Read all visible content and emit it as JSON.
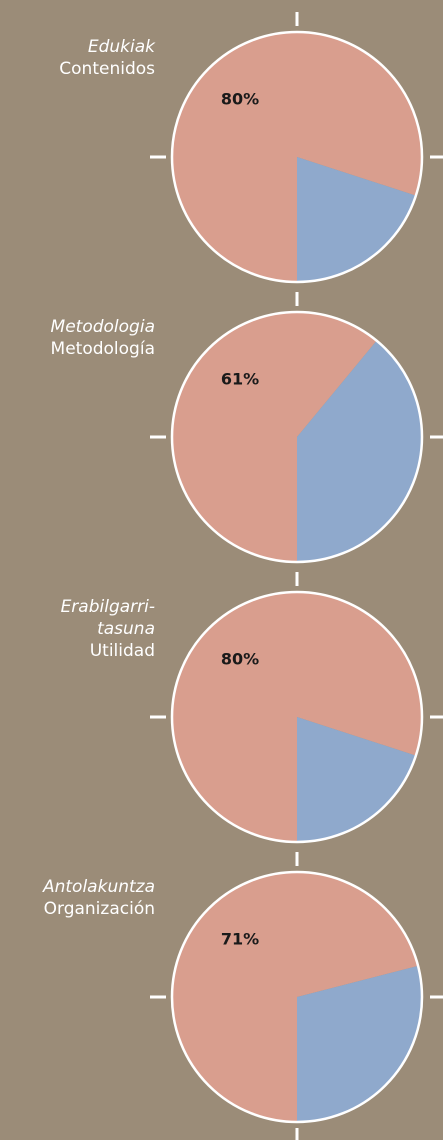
{
  "chart_data": [
    {
      "type": "pie",
      "title_lines": [
        "Edukiak"
      ],
      "subtitle": "Contenidos",
      "values": [
        80,
        20
      ],
      "value_labels": [
        "80%",
        null
      ],
      "colors": [
        "#d99e8e",
        "#8fa9cc"
      ]
    },
    {
      "type": "pie",
      "title_lines": [
        "Metodologia"
      ],
      "subtitle": "Metodología",
      "values": [
        61,
        39
      ],
      "value_labels": [
        "61%",
        null
      ],
      "colors": [
        "#d99e8e",
        "#8fa9cc"
      ]
    },
    {
      "type": "pie",
      "title_lines": [
        "Erabilgarri-",
        "tasuna"
      ],
      "subtitle": "Utilidad",
      "values": [
        80,
        20
      ],
      "value_labels": [
        "80%",
        null
      ],
      "colors": [
        "#d99e8e",
        "#8fa9cc"
      ]
    },
    {
      "type": "pie",
      "title_lines": [
        "Antolakuntza"
      ],
      "subtitle": "Organización",
      "values": [
        71,
        29
      ],
      "value_labels": [
        "71%",
        null
      ],
      "colors": [
        "#d99e8e",
        "#8fa9cc"
      ]
    }
  ]
}
